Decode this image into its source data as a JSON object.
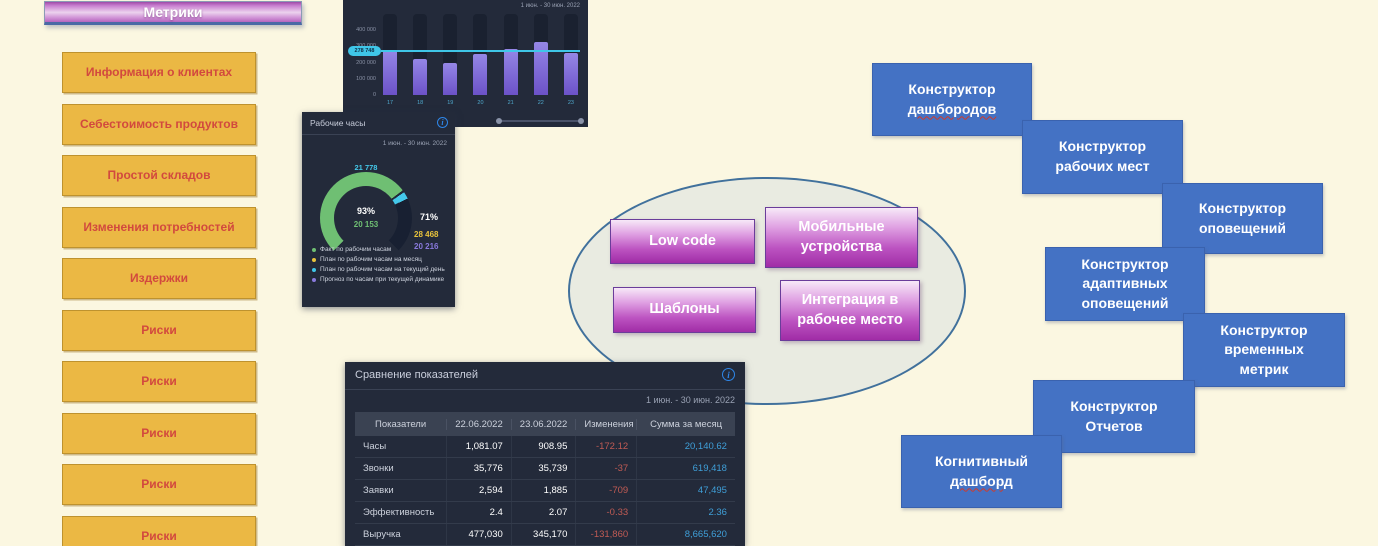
{
  "palette": {
    "page_background": "#FBF7E1",
    "metric_button_fill": "#EBB844",
    "metric_button_text": "#D2493E",
    "metrics_header_gradient": [
      "#9E4AA8",
      "#ECD2EE",
      "#B565BF"
    ],
    "dark_panel": "#232A3A",
    "bar_purple": "#8677DD",
    "accent_cyan": "#3FC6E8",
    "gauge_green": "#6FBF73",
    "gauge_yellow": "#E8C33C",
    "gauge_purple": "#8979DC",
    "table_change_red": "#C05B54",
    "table_sum_blue": "#3F9FD8",
    "blue_box_fill": "#4472C4",
    "ellipse_fill": "#E9EBE1",
    "ellipse_border": "#41719C",
    "feature_gradient": [
      "#F7E9F8",
      "#A02CA6"
    ]
  },
  "metrics_panel": {
    "title": "Метрики",
    "items": [
      "Информация о клиентах",
      "Себестоимость продуктов",
      "Простой складов",
      "Изменения потребностей",
      "Издержки",
      "Риски",
      "Риски",
      "Риски",
      "Риски",
      "Риски"
    ]
  },
  "chart_data": [
    {
      "type": "bar",
      "title": "",
      "date_range": "1 июн. - 30 июн. 2022",
      "x": [
        "17",
        "18",
        "19",
        "20",
        "21",
        "22",
        "23"
      ],
      "values": [
        280000,
        225000,
        200000,
        255000,
        285000,
        330000,
        262000
      ],
      "yticks": [
        "400 000",
        "300 000",
        "200 000",
        "100 000",
        "0"
      ],
      "ylim": [
        0,
        500000
      ],
      "reference_line": {
        "value": 278748,
        "label": "278 748",
        "color": "#3FC6E8"
      },
      "bar_color": "#8677DD",
      "legend_position": "none",
      "grid": false
    },
    {
      "type": "gauge",
      "title": "Рабочие часы",
      "date_range": "1 июн. - 30 июн. 2022",
      "center_percent": "93%",
      "fact_value": "20 153",
      "plan_day_value": "21 778",
      "right_percent": "71%",
      "plan_month_value": "28 468",
      "forecast_value": "20 216",
      "legend": [
        {
          "color": "#6FBF73",
          "label": "Факт по рабочим часам"
        },
        {
          "color": "#E8C33C",
          "label": "План по рабочим часам на месяц"
        },
        {
          "color": "#3FC6E8",
          "label": "План по рабочим часам на текущий день"
        },
        {
          "color": "#8979DC",
          "label": "Прогноз по часам при текущей динамике"
        }
      ]
    },
    {
      "type": "table",
      "title": "Сравнение показателей",
      "date_range": "1 июн. - 30 июн. 2022",
      "columns": [
        "Показатели",
        "22.06.2022",
        "23.06.2022",
        "Изменения",
        "Сумма за месяц"
      ],
      "rows": [
        [
          "Часы",
          "1,081.07",
          "908.95",
          "-172.12",
          "20,140.62"
        ],
        [
          "Звонки",
          "35,776",
          "35,739",
          "-37",
          "619,418"
        ],
        [
          "Заявки",
          "2,594",
          "1,885",
          "-709",
          "47,495"
        ],
        [
          "Эффективность",
          "2.4",
          "2.07",
          "-0.33",
          "2.36"
        ],
        [
          "Выручка",
          "477,030",
          "345,170",
          "-131,860",
          "8,665,620"
        ]
      ]
    }
  ],
  "features": [
    {
      "label": "Low code"
    },
    {
      "label": "Мобильные устройства"
    },
    {
      "label": "Шаблоны"
    },
    {
      "label": "Интеграция в рабочее место"
    }
  ],
  "right_boxes": [
    {
      "lines": [
        "Конструктор",
        "дашбородов"
      ]
    },
    {
      "lines": [
        "Конструктор",
        "рабочих мест"
      ]
    },
    {
      "lines": [
        "Конструктор",
        "оповещений"
      ]
    },
    {
      "lines": [
        "Конструктор",
        "адаптивных",
        "оповещений"
      ]
    },
    {
      "lines": [
        "Конструктор",
        "временных",
        "метрик"
      ]
    },
    {
      "lines": [
        "Конструктор",
        "Отчетов"
      ]
    },
    {
      "lines": [
        "Когнитивный",
        "дашборд"
      ]
    }
  ]
}
